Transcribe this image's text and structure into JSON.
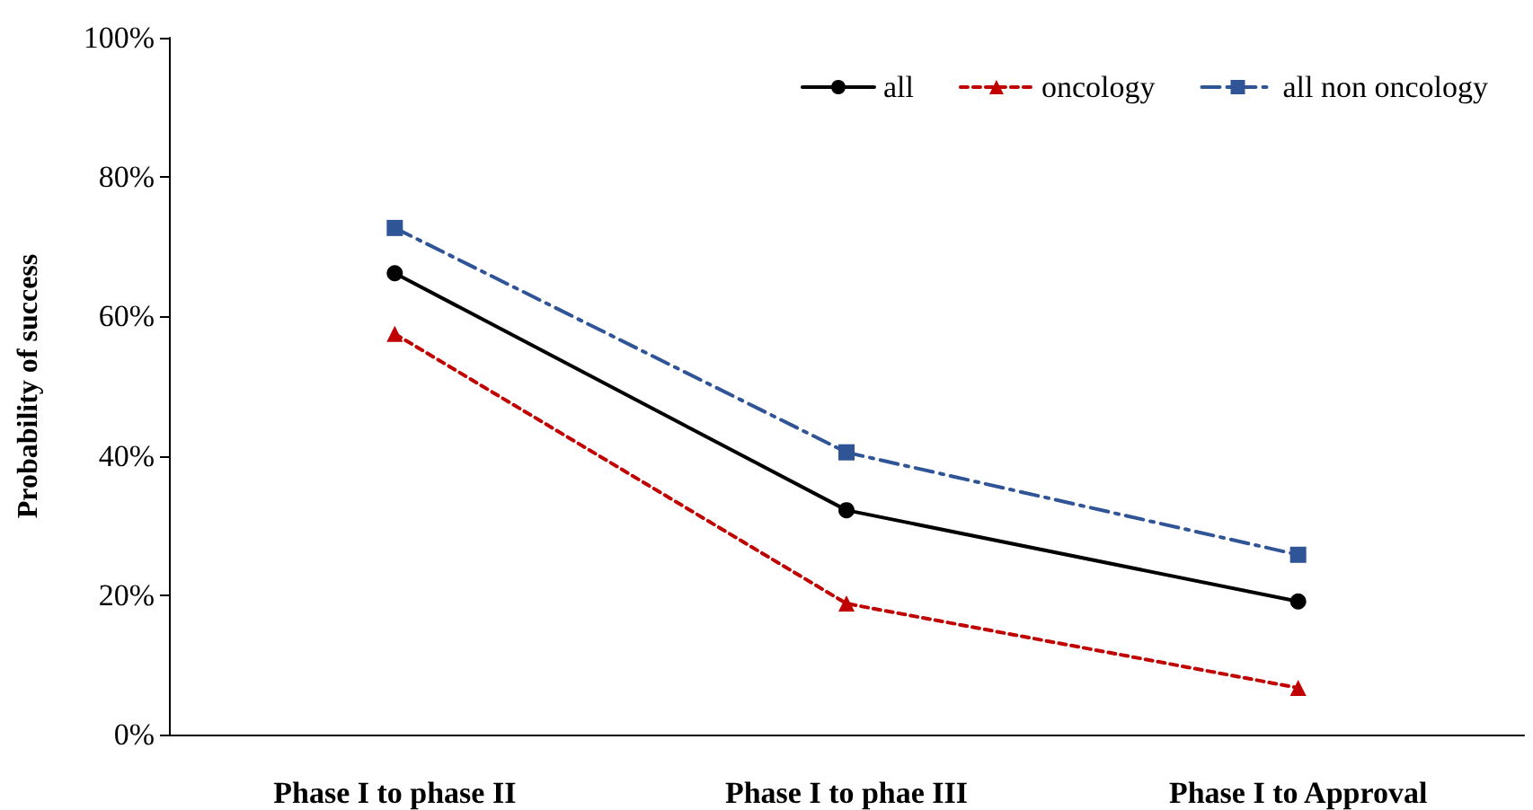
{
  "chart_data": {
    "type": "line",
    "ylabel": "Probability of success",
    "categories": [
      "Phase I to phase II",
      "Phase I to phae III",
      "Phase I to Approval"
    ],
    "series": [
      {
        "name": "all",
        "color": "#000000",
        "values": [
          66.2,
          32.2,
          19.1
        ],
        "marker": "circle",
        "line_style": "solid"
      },
      {
        "name": "oncology",
        "color": "#c00000",
        "values": [
          57.5,
          18.8,
          6.7
        ],
        "marker": "triangle",
        "line_style": "dashed"
      },
      {
        "name": "all non oncology",
        "color": "#2f5597",
        "values": [
          72.7,
          40.5,
          25.8
        ],
        "marker": "square",
        "line_style": "dashdot"
      }
    ],
    "ylim": [
      0,
      100
    ],
    "yticks": [
      {
        "value": 0,
        "label": "0%"
      },
      {
        "value": 20,
        "label": "20%"
      },
      {
        "value": 40,
        "label": "40%"
      },
      {
        "value": 60,
        "label": "60%"
      },
      {
        "value": 80,
        "label": "80%"
      },
      {
        "value": 100,
        "label": "100%"
      }
    ],
    "grid": false,
    "legend": "top right"
  }
}
